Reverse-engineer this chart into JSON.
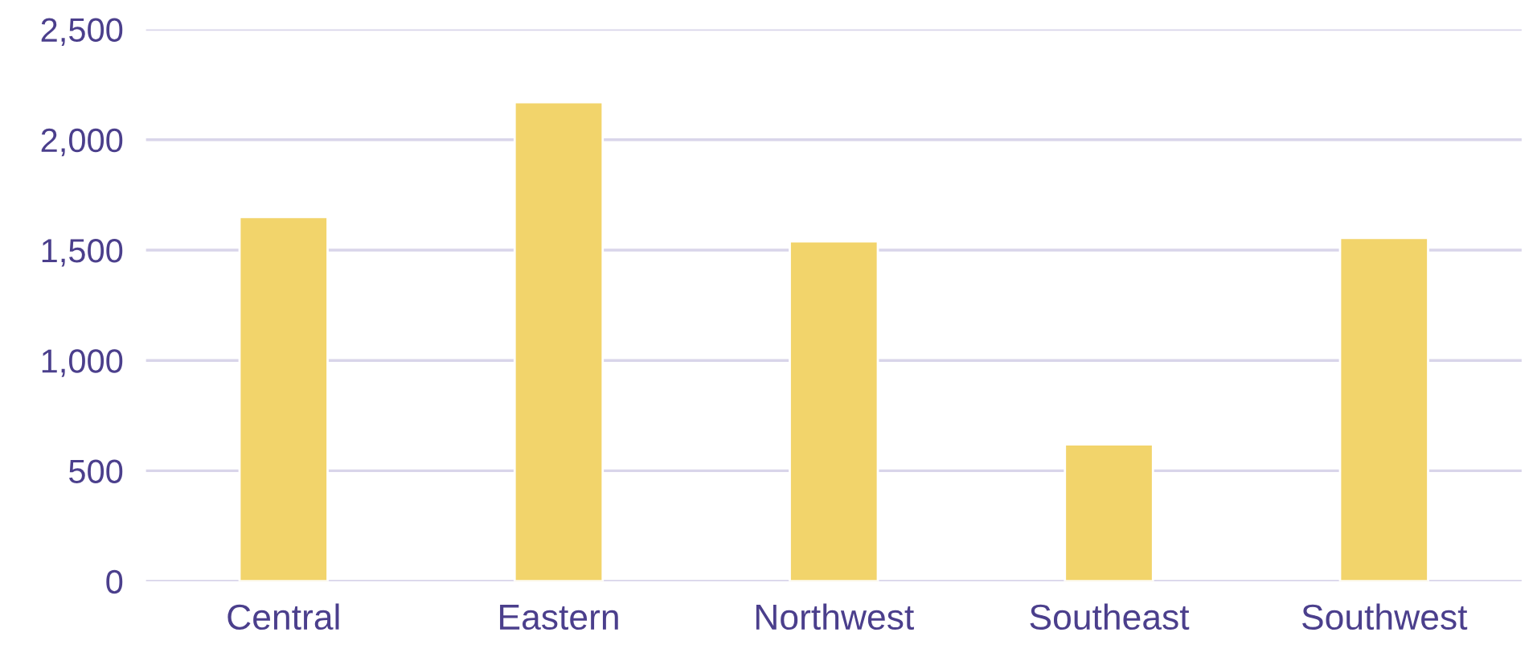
{
  "chart_data": {
    "type": "bar",
    "categories": [
      "Central",
      "Eastern",
      "Northwest",
      "Southeast",
      "Southwest"
    ],
    "values": [
      1650,
      2170,
      1540,
      620,
      1555
    ],
    "color": "#f2d46b",
    "ylim": [
      0,
      2500
    ],
    "yticks": [
      {
        "value": 0,
        "label": "0"
      },
      {
        "value": 500,
        "label": "500"
      },
      {
        "value": 1000,
        "label": "1,000"
      },
      {
        "value": 1500,
        "label": "1,500"
      },
      {
        "value": 2000,
        "label": "2,000"
      },
      {
        "value": 2500,
        "label": "2,500"
      }
    ],
    "grid": "y"
  }
}
